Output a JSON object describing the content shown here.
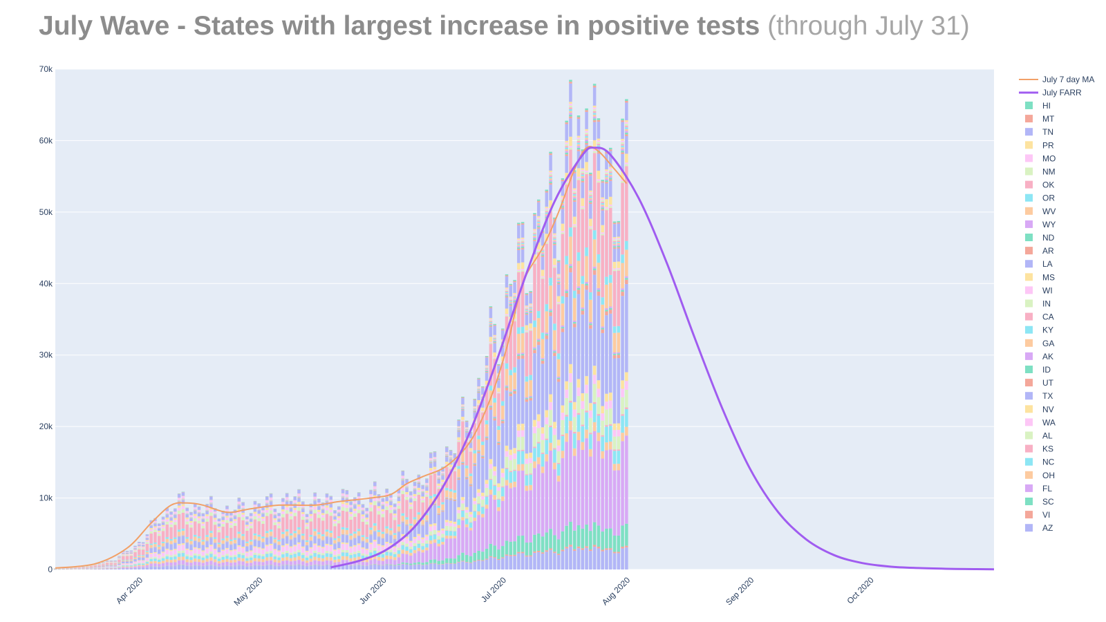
{
  "title": {
    "main": "July Wave - States with largest increase in positive tests",
    "sub": "(through July 31)"
  },
  "chart_data": {
    "type": "bar",
    "stacked": true,
    "x_axis": {
      "type": "date",
      "range": [
        "2020-03-10",
        "2020-10-31"
      ],
      "ticks": [
        "Apr 2020",
        "May 2020",
        "Jun 2020",
        "Jul 2020",
        "Aug 2020",
        "Sep 2020",
        "Oct 2020"
      ],
      "tick_dates": [
        "2020-04-01",
        "2020-05-01",
        "2020-06-01",
        "2020-07-01",
        "2020-08-01",
        "2020-09-01",
        "2020-10-01"
      ]
    },
    "y_axis": {
      "range": [
        0,
        70000
      ],
      "ticks": [
        "0",
        "10k",
        "20k",
        "30k",
        "40k",
        "50k",
        "60k",
        "70k"
      ],
      "tick_values": [
        0,
        10000,
        20000,
        30000,
        40000,
        50000,
        60000,
        70000
      ]
    },
    "grid": true,
    "legend_position": "right",
    "plot_background": "#e5ecf6",
    "states": [
      "HI",
      "MT",
      "TN",
      "PR",
      "MO",
      "NM",
      "OK",
      "OR",
      "WV",
      "WY",
      "ND",
      "AR",
      "LA",
      "MS",
      "WI",
      "IN",
      "CA",
      "KY",
      "GA",
      "AK",
      "ID",
      "UT",
      "TX",
      "NV",
      "WA",
      "AL",
      "KS",
      "NC",
      "OH",
      "FL",
      "SC",
      "VI",
      "AZ"
    ],
    "state_colors": [
      "#7ee0c3",
      "#f4a79a",
      "#b2b6f7",
      "#fde3a0",
      "#fdc7f6",
      "#d9f2c2",
      "#f8b0c4",
      "#8de6f4",
      "#fdcba0",
      "#d8a9f5",
      "#7ee0c3",
      "#f4a79a",
      "#b2b6f7",
      "#fde3a0",
      "#fdc7f6",
      "#d9f2c2",
      "#f8b0c4",
      "#8de6f4",
      "#fdcba0",
      "#d8a9f5",
      "#7ee0c3",
      "#f4a79a",
      "#b2b6f7",
      "#fde3a0",
      "#fdc7f6",
      "#d9f2c2",
      "#f8b0c4",
      "#8de6f4",
      "#fdcba0",
      "#d8a9f5",
      "#7ee0c3",
      "#f4a79a",
      "#b2b6f7"
    ],
    "daily_total": {
      "dates": [
        "2020-03-10",
        "2020-03-15",
        "2020-03-20",
        "2020-03-25",
        "2020-03-30",
        "2020-04-04",
        "2020-04-09",
        "2020-04-14",
        "2020-04-19",
        "2020-04-24",
        "2020-04-29",
        "2020-05-04",
        "2020-05-09",
        "2020-05-14",
        "2020-05-19",
        "2020-05-24",
        "2020-05-29",
        "2020-06-03",
        "2020-06-08",
        "2020-06-13",
        "2020-06-18",
        "2020-06-23",
        "2020-06-28",
        "2020-07-03",
        "2020-07-08",
        "2020-07-13",
        "2020-07-18",
        "2020-07-22",
        "2020-07-27",
        "2020-07-31"
      ],
      "values": [
        150,
        300,
        700,
        1500,
        3200,
        6500,
        9500,
        9000,
        8500,
        8500,
        9000,
        9500,
        10000,
        9500,
        10000,
        10000,
        10500,
        11000,
        12500,
        14500,
        18000,
        24000,
        33000,
        42000,
        47000,
        53000,
        57000,
        60000,
        56000,
        57000
      ],
      "peaks": [
        {
          "date": "2020-07-17",
          "value": 68500
        },
        {
          "date": "2020-07-21",
          "value": 64500
        }
      ]
    },
    "stack_composition": [
      {
        "dates": [
          "2020-03-10",
          "2020-05-31"
        ],
        "shares": {
          "CA": 0.22,
          "WA": 0.08,
          "AZ": 0.06,
          "NC": 0.05,
          "OH": 0.05,
          "TN": 0.05,
          "GA": 0.06,
          "FL": 0.06,
          "WI": 0.04,
          "MO": 0.03,
          "TX": 0.1,
          "KY": 0.03,
          "IN": 0.05,
          "AL": 0.03,
          "NV": 0.02,
          "LA": 0.05,
          "MS": 0.03
        }
      },
      {
        "dates": [
          "2020-06-20",
          "2020-07-31"
        ],
        "shares": {
          "SC": 0.05,
          "FL": 0.2,
          "AZ": 0.05,
          "TX": 0.2,
          "CA": 0.17,
          "GA": 0.06,
          "NC": 0.04,
          "AL": 0.04,
          "TN": 0.04,
          "LA": 0.04,
          "KY": 0.02,
          "OH": 0.02,
          "NV": 0.02,
          "MS": 0.02,
          "WA": 0.02,
          "UT": 0.01
        }
      }
    ],
    "series": [
      {
        "name": "July 7 day MA",
        "type": "line",
        "color": "#f2a067",
        "x": [
          "2020-03-10",
          "2020-03-20",
          "2020-03-28",
          "2020-04-03",
          "2020-04-08",
          "2020-04-12",
          "2020-04-16",
          "2020-04-22",
          "2020-04-28",
          "2020-05-05",
          "2020-05-14",
          "2020-05-20",
          "2020-05-28",
          "2020-06-02",
          "2020-06-06",
          "2020-06-10",
          "2020-06-16",
          "2020-06-22",
          "2020-06-27",
          "2020-07-01",
          "2020-07-05",
          "2020-07-10",
          "2020-07-14",
          "2020-07-18",
          "2020-07-21",
          "2020-07-24",
          "2020-07-28",
          "2020-07-31"
        ],
        "y": [
          200,
          800,
          3000,
          6500,
          9000,
          9300,
          9000,
          8000,
          8500,
          9000,
          9000,
          9500,
          10000,
          10500,
          12000,
          13000,
          14500,
          18000,
          24000,
          31000,
          40000,
          45000,
          50000,
          56000,
          59000,
          58500,
          56000,
          54000
        ]
      },
      {
        "name": "July FARR",
        "type": "line",
        "color": "#a05cf0",
        "x": [
          "2020-05-18",
          "2020-05-25",
          "2020-06-01",
          "2020-06-08",
          "2020-06-15",
          "2020-06-22",
          "2020-06-29",
          "2020-07-06",
          "2020-07-13",
          "2020-07-20",
          "2020-07-23",
          "2020-07-27",
          "2020-08-03",
          "2020-08-10",
          "2020-08-17",
          "2020-08-24",
          "2020-08-31",
          "2020-09-07",
          "2020-09-14",
          "2020-09-21",
          "2020-09-28",
          "2020-10-05",
          "2020-10-12",
          "2020-10-19",
          "2020-10-26",
          "2020-10-31"
        ],
        "y": [
          300,
          1200,
          2800,
          6000,
          11500,
          19500,
          30000,
          41500,
          51500,
          58000,
          59000,
          58000,
          52000,
          43000,
          32500,
          22500,
          14000,
          8000,
          4200,
          2000,
          900,
          400,
          200,
          100,
          50,
          30
        ]
      }
    ]
  }
}
